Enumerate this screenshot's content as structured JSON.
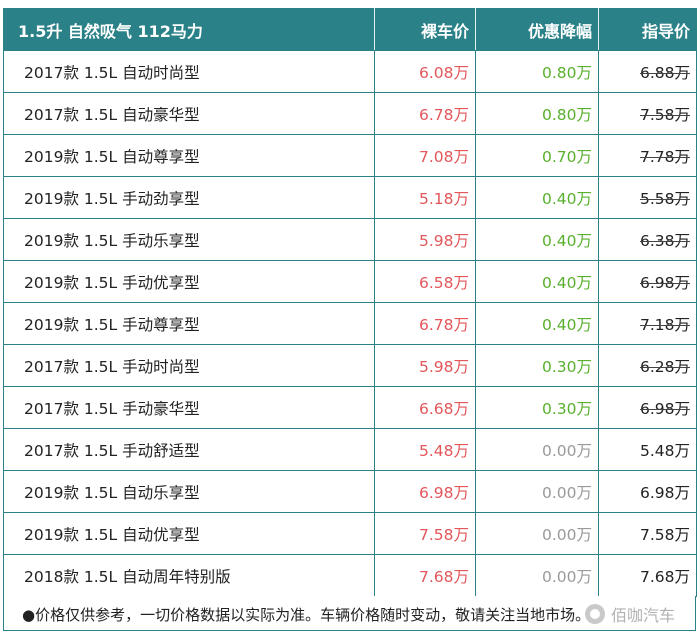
{
  "header": {
    "title": "1.5升 自然吸气 112马力",
    "col_price": "裸车价",
    "col_discount": "优惠降幅",
    "col_guide": "指导价"
  },
  "rows": [
    {
      "name": "2017款 1.5L 自动时尚型",
      "price": "6.08万",
      "discount": "0.80万",
      "guide": "6.88万"
    },
    {
      "name": "2017款 1.5L 自动豪华型",
      "price": "6.78万",
      "discount": "0.80万",
      "guide": "7.58万"
    },
    {
      "name": "2019款 1.5L 自动尊享型",
      "price": "7.08万",
      "discount": "0.70万",
      "guide": "7.78万"
    },
    {
      "name": "2019款 1.5L 手动劲享型",
      "price": "5.18万",
      "discount": "0.40万",
      "guide": "5.58万"
    },
    {
      "name": "2019款 1.5L 手动乐享型",
      "price": "5.98万",
      "discount": "0.40万",
      "guide": "6.38万"
    },
    {
      "name": "2019款 1.5L 手动优享型",
      "price": "6.58万",
      "discount": "0.40万",
      "guide": "6.98万"
    },
    {
      "name": "2019款 1.5L 手动尊享型",
      "price": "6.78万",
      "discount": "0.40万",
      "guide": "7.18万"
    },
    {
      "name": "2017款 1.5L 手动时尚型",
      "price": "5.98万",
      "discount": "0.30万",
      "guide": "6.28万"
    },
    {
      "name": "2017款 1.5L 手动豪华型",
      "price": "6.68万",
      "discount": "0.30万",
      "guide": "6.98万"
    },
    {
      "name": "2017款 1.5L 手动舒适型",
      "price": "5.48万",
      "discount": "0.00万",
      "guide": "5.48万"
    },
    {
      "name": "2019款 1.5L 自动乐享型",
      "price": "6.98万",
      "discount": "0.00万",
      "guide": "6.98万"
    },
    {
      "name": "2019款 1.5L 自动优享型",
      "price": "7.58万",
      "discount": "0.00万",
      "guide": "7.58万"
    },
    {
      "name": "2018款 1.5L 自动周年特别版",
      "price": "7.68万",
      "discount": "0.00万",
      "guide": "7.68万"
    }
  ],
  "footer": {
    "note": "●价格仅供参考，一切价格数据以实际为准。车辆价格随时变动，敬请关注当地市场。",
    "brand": "佰咖汽车",
    "brand_icon": "wechat-brand-icon"
  },
  "colors": {
    "header_bg": "#2a8188",
    "price": "#e3565a",
    "discount": "#59b02e",
    "discount_zero": "#9a9a9a"
  }
}
